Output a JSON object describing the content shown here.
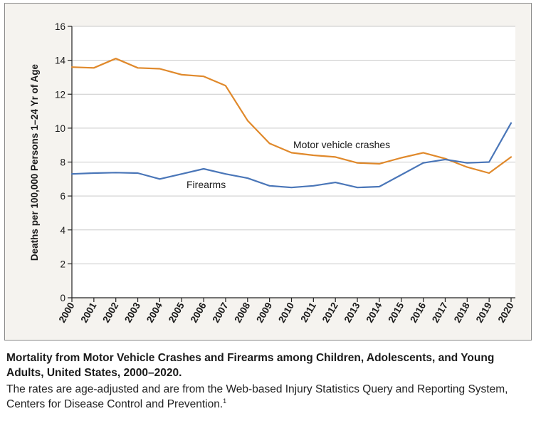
{
  "chart_data": {
    "type": "line",
    "title": "",
    "xlabel": "",
    "ylabel": "Deaths per 100,000 Persons 1–24 Yr of Age",
    "ylim": [
      0,
      16
    ],
    "yticks": [
      0,
      2,
      4,
      6,
      8,
      10,
      12,
      14,
      16
    ],
    "grid": "horizontal",
    "x": [
      "2000",
      "2001",
      "2002",
      "2003",
      "2004",
      "2005",
      "2006",
      "2007",
      "2008",
      "2009",
      "2010",
      "2011",
      "2012",
      "2013",
      "2014",
      "2015",
      "2016",
      "2017",
      "2018",
      "2019",
      "2020"
    ],
    "series": [
      {
        "name": "Motor vehicle crashes",
        "color": "#e0892b",
        "values": [
          13.6,
          13.55,
          14.1,
          13.55,
          13.5,
          13.15,
          13.05,
          12.5,
          10.45,
          9.1,
          8.55,
          8.4,
          8.3,
          7.95,
          7.9,
          8.25,
          8.55,
          8.2,
          7.7,
          7.35,
          8.3
        ]
      },
      {
        "name": "Firearms",
        "color": "#4a76b8",
        "values": [
          7.3,
          7.35,
          7.38,
          7.35,
          7.0,
          7.3,
          7.6,
          7.3,
          7.05,
          6.6,
          6.5,
          6.6,
          6.8,
          6.5,
          6.55,
          7.25,
          7.95,
          8.15,
          7.95,
          8.0,
          10.3
        ]
      }
    ]
  },
  "caption": {
    "title": "Mortality from Motor Vehicle Crashes and Firearms among Children, Adolescents, and Young Adults, United States, 2000–2020.",
    "body": "The rates are age-adjusted and are from the Web-based Injury Statistics Query and Reporting System, Centers for Disease Control and Prevention.",
    "ref": "1"
  }
}
